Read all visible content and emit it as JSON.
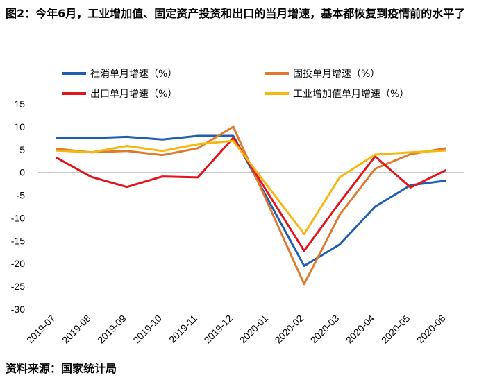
{
  "chart_data": {
    "type": "line",
    "title": "图2：今年6月，工业增加值、固定资产投资和出口的当月增速，基本都恢复到疫情前的水平了",
    "xlabel": "",
    "ylabel": "",
    "ylim": [
      -30,
      15
    ],
    "yticks": [
      15,
      10,
      5,
      0,
      -5,
      -10,
      -15,
      -20,
      -25,
      -30
    ],
    "grid": false,
    "legend_position": "top",
    "categories": [
      "2019-07",
      "2019-08",
      "2019-09",
      "2019-10",
      "2019-11",
      "2019-12",
      "2020-01",
      "2020-02",
      "2020-03",
      "2020-04",
      "2020-05",
      "2020-06"
    ],
    "series": [
      {
        "name": "社消单月增速（%）",
        "color": "#1f5fb0",
        "values": [
          7.6,
          7.5,
          7.8,
          7.2,
          8.0,
          8.0,
          null,
          -20.5,
          -15.8,
          -7.5,
          -2.8,
          -1.8
        ]
      },
      {
        "name": "固投单月增速（%）",
        "color": "#e07a2e",
        "values": [
          5.2,
          4.4,
          4.7,
          3.8,
          5.3,
          10.0,
          null,
          -24.5,
          -9.3,
          0.8,
          4.0,
          5.3
        ]
      },
      {
        "name": "出口单月增速（%）",
        "color": "#e3141b",
        "values": [
          3.3,
          -1.0,
          -3.2,
          -0.9,
          -1.1,
          7.6,
          null,
          -17.2,
          -6.6,
          3.5,
          -3.3,
          0.5
        ]
      },
      {
        "name": "工业增加值单月增速（%）",
        "color": "#f6b70f",
        "values": [
          4.8,
          4.4,
          5.8,
          4.7,
          6.2,
          6.9,
          null,
          -13.5,
          -1.1,
          3.9,
          4.4,
          4.8
        ]
      }
    ],
    "source": "资料来源：国家统计局"
  }
}
